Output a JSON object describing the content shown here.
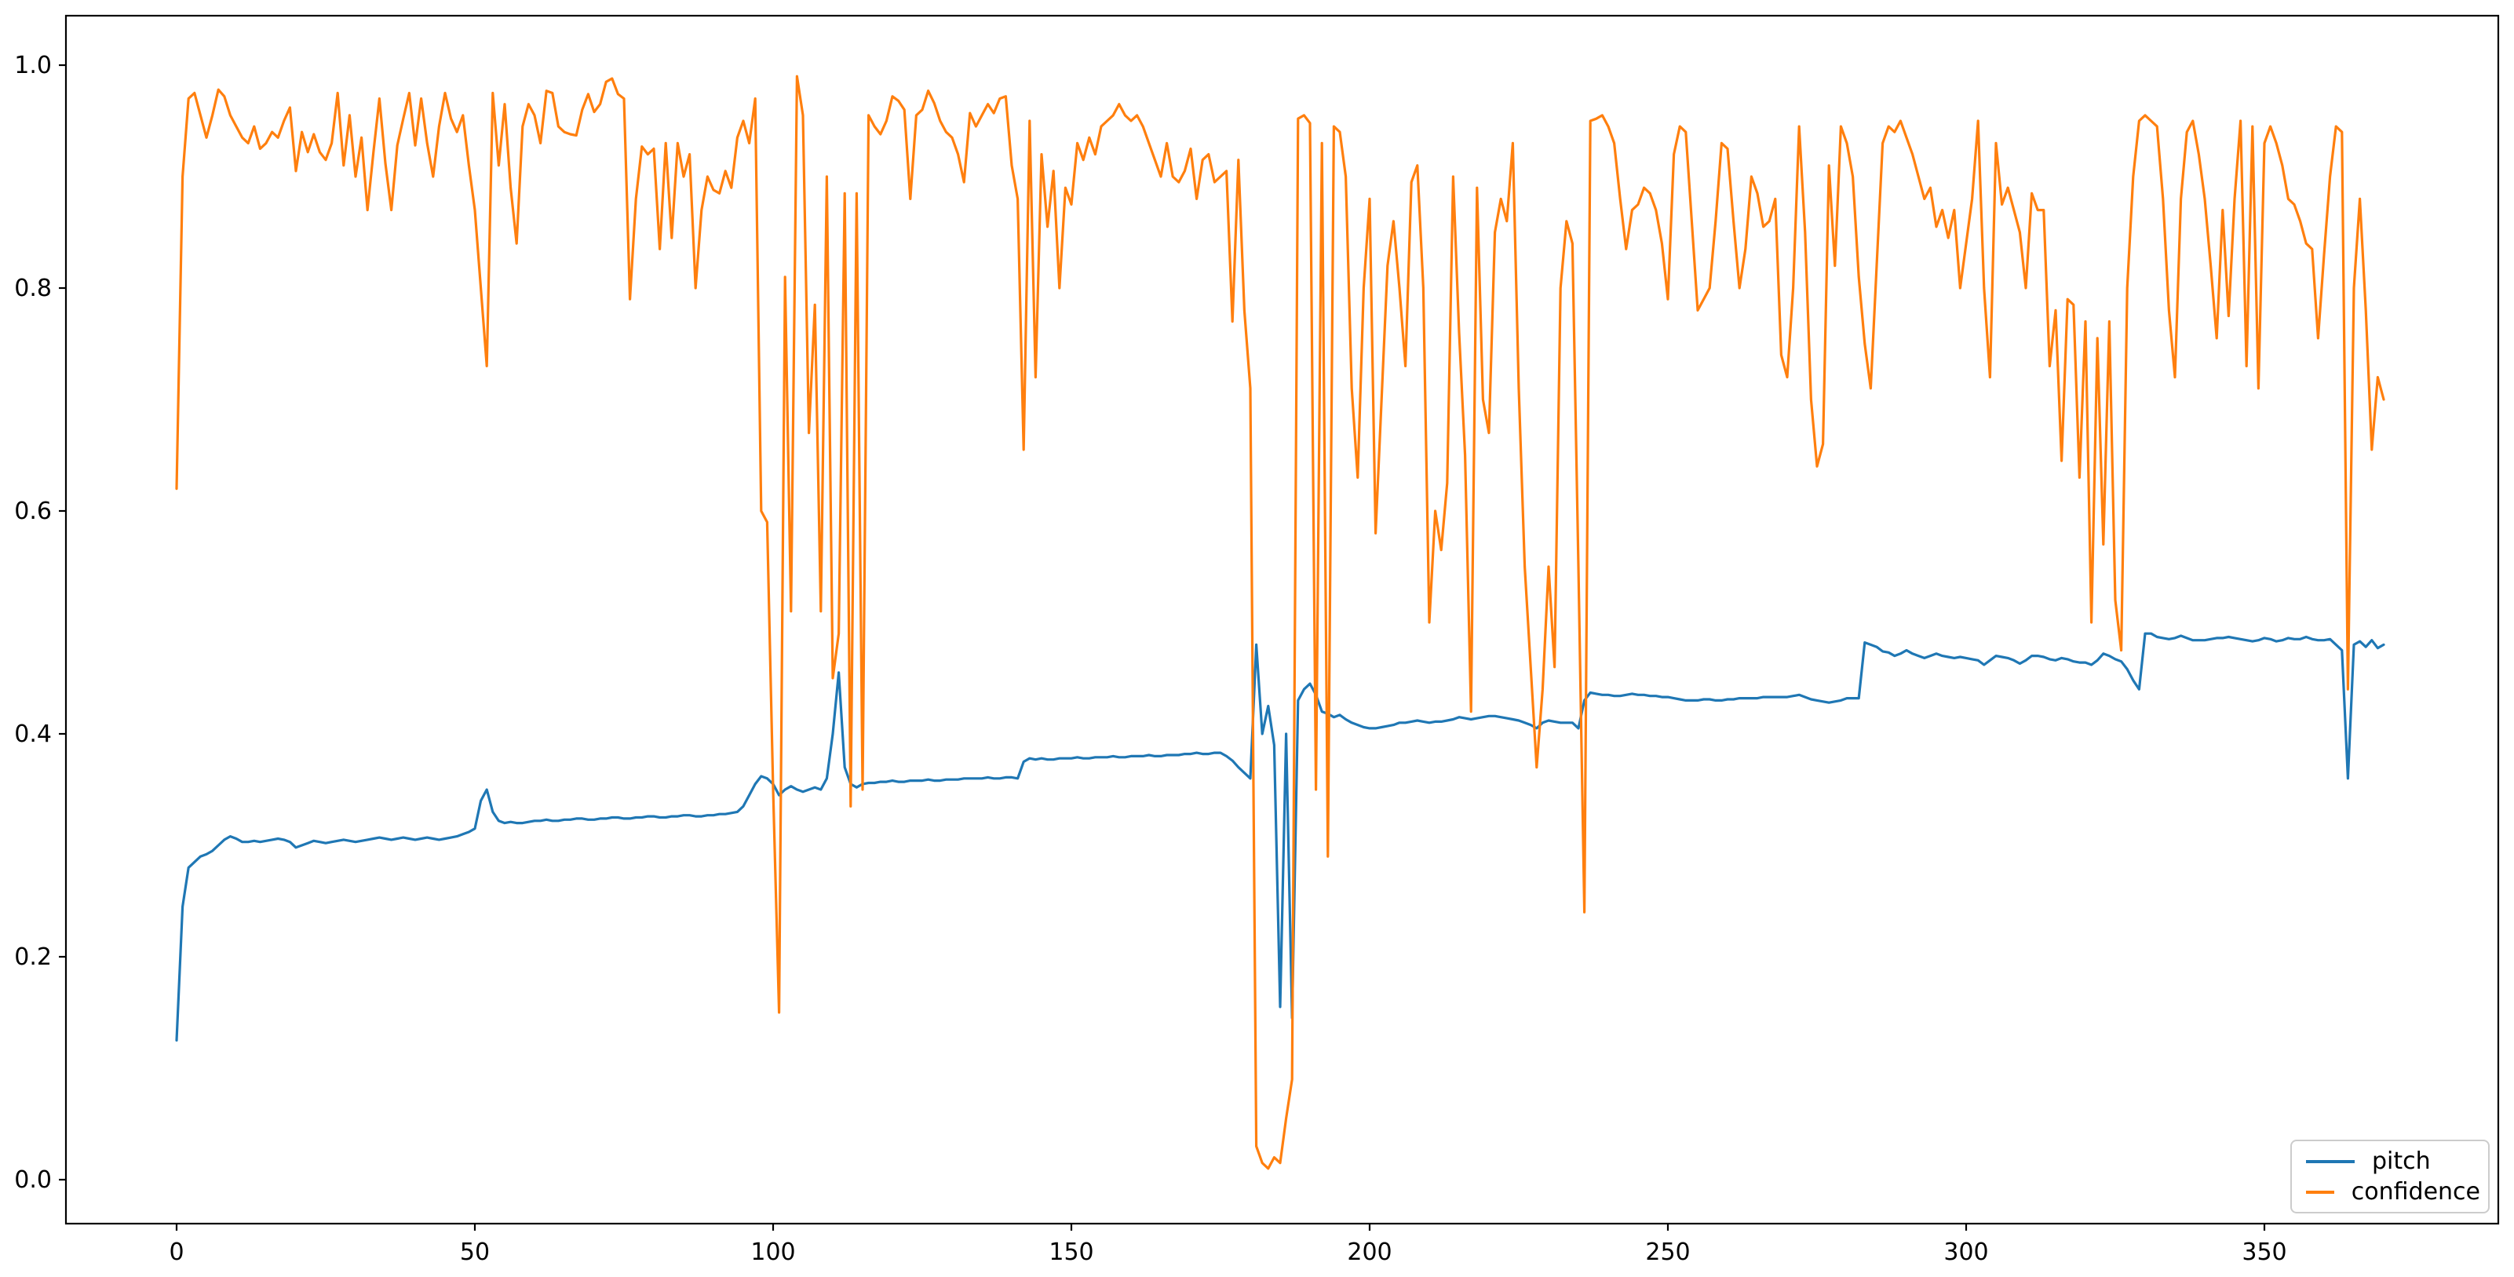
{
  "figure": {
    "background_color": "#ffffff",
    "axes_edge_color": "#000000",
    "tick_label_color": "#000000"
  },
  "legend": {
    "position": "lower-right",
    "items": [
      {
        "label": "pitch",
        "color": "#1f77b4"
      },
      {
        "label": "confidence",
        "color": "#ff7f0e"
      }
    ]
  },
  "chart_data": {
    "type": "line",
    "title": "",
    "xlabel": "",
    "ylabel": "",
    "grid": false,
    "legend_position": "lower right",
    "x_tick_labels": [
      "0",
      "50",
      "100",
      "150",
      "200",
      "250",
      "300",
      "350"
    ],
    "x_tick_values": [
      0,
      50,
      100,
      150,
      200,
      250,
      300,
      350
    ],
    "y_tick_labels": [
      "0.0",
      "0.2",
      "0.4",
      "0.6",
      "0.8",
      "1.0"
    ],
    "y_tick_values": [
      0.0,
      0.2,
      0.4,
      0.6,
      0.8,
      1.0
    ],
    "xlim": [
      -18.5,
      388.5
    ],
    "ylim": [
      -0.039,
      1.044
    ],
    "x_start": 0,
    "x_step": 1,
    "n_points": 371,
    "series": [
      {
        "name": "pitch",
        "color": "#1f77b4",
        "values": [
          0.125,
          0.245,
          0.28,
          0.285,
          0.29,
          0.292,
          0.295,
          0.3,
          0.305,
          0.308,
          0.306,
          0.303,
          0.303,
          0.304,
          0.303,
          0.304,
          0.305,
          0.306,
          0.305,
          0.303,
          0.298,
          0.3,
          0.302,
          0.304,
          0.303,
          0.302,
          0.303,
          0.304,
          0.305,
          0.304,
          0.303,
          0.304,
          0.305,
          0.306,
          0.307,
          0.306,
          0.305,
          0.306,
          0.307,
          0.306,
          0.305,
          0.306,
          0.307,
          0.306,
          0.305,
          0.306,
          0.307,
          0.308,
          0.31,
          0.312,
          0.315,
          0.34,
          0.35,
          0.33,
          0.322,
          0.32,
          0.321,
          0.32,
          0.32,
          0.321,
          0.322,
          0.322,
          0.323,
          0.322,
          0.322,
          0.323,
          0.323,
          0.324,
          0.324,
          0.323,
          0.323,
          0.324,
          0.324,
          0.325,
          0.325,
          0.324,
          0.324,
          0.325,
          0.325,
          0.326,
          0.326,
          0.325,
          0.325,
          0.326,
          0.326,
          0.327,
          0.327,
          0.326,
          0.326,
          0.327,
          0.327,
          0.328,
          0.328,
          0.329,
          0.33,
          0.335,
          0.345,
          0.355,
          0.362,
          0.36,
          0.355,
          0.345,
          0.35,
          0.353,
          0.35,
          0.348,
          0.35,
          0.352,
          0.35,
          0.36,
          0.4,
          0.455,
          0.37,
          0.355,
          0.352,
          0.355,
          0.356,
          0.356,
          0.357,
          0.357,
          0.358,
          0.357,
          0.357,
          0.358,
          0.358,
          0.358,
          0.359,
          0.358,
          0.358,
          0.359,
          0.359,
          0.359,
          0.36,
          0.36,
          0.36,
          0.36,
          0.361,
          0.36,
          0.36,
          0.361,
          0.361,
          0.36,
          0.375,
          0.378,
          0.377,
          0.378,
          0.377,
          0.377,
          0.378,
          0.378,
          0.378,
          0.379,
          0.378,
          0.378,
          0.379,
          0.379,
          0.379,
          0.38,
          0.379,
          0.379,
          0.38,
          0.38,
          0.38,
          0.381,
          0.38,
          0.38,
          0.381,
          0.381,
          0.381,
          0.382,
          0.382,
          0.383,
          0.382,
          0.382,
          0.383,
          0.383,
          0.38,
          0.376,
          0.37,
          0.365,
          0.36,
          0.48,
          0.4,
          0.425,
          0.39,
          0.155,
          0.4,
          0.145,
          0.43,
          0.44,
          0.445,
          0.435,
          0.42,
          0.418,
          0.415,
          0.417,
          0.413,
          0.41,
          0.408,
          0.406,
          0.405,
          0.405,
          0.406,
          0.407,
          0.408,
          0.41,
          0.41,
          0.411,
          0.412,
          0.411,
          0.41,
          0.411,
          0.411,
          0.412,
          0.413,
          0.415,
          0.414,
          0.413,
          0.414,
          0.415,
          0.416,
          0.416,
          0.415,
          0.414,
          0.413,
          0.412,
          0.41,
          0.408,
          0.405,
          0.41,
          0.412,
          0.411,
          0.41,
          0.41,
          0.41,
          0.405,
          0.43,
          0.437,
          0.436,
          0.435,
          0.435,
          0.434,
          0.434,
          0.435,
          0.436,
          0.435,
          0.435,
          0.434,
          0.434,
          0.433,
          0.433,
          0.432,
          0.431,
          0.43,
          0.43,
          0.43,
          0.431,
          0.431,
          0.43,
          0.43,
          0.431,
          0.431,
          0.432,
          0.432,
          0.432,
          0.432,
          0.433,
          0.433,
          0.433,
          0.433,
          0.433,
          0.434,
          0.435,
          0.433,
          0.431,
          0.43,
          0.429,
          0.428,
          0.429,
          0.43,
          0.432,
          0.432,
          0.432,
          0.482,
          0.48,
          0.478,
          0.474,
          0.473,
          0.47,
          0.472,
          0.475,
          0.472,
          0.47,
          0.468,
          0.47,
          0.472,
          0.47,
          0.469,
          0.468,
          0.469,
          0.468,
          0.467,
          0.466,
          0.462,
          0.466,
          0.47,
          0.469,
          0.468,
          0.466,
          0.463,
          0.466,
          0.47,
          0.47,
          0.469,
          0.467,
          0.466,
          0.468,
          0.467,
          0.465,
          0.464,
          0.464,
          0.462,
          0.466,
          0.472,
          0.47,
          0.467,
          0.465,
          0.458,
          0.448,
          0.44,
          0.49,
          0.49,
          0.487,
          0.486,
          0.485,
          0.486,
          0.488,
          0.486,
          0.484,
          0.484,
          0.484,
          0.485,
          0.486,
          0.486,
          0.487,
          0.486,
          0.485,
          0.484,
          0.483,
          0.484,
          0.486,
          0.485,
          0.483,
          0.484,
          0.486,
          0.485,
          0.485,
          0.487,
          0.485,
          0.484,
          0.484,
          0.485,
          0.48,
          0.475,
          0.36,
          0.48,
          0.483,
          0.478,
          0.484,
          0.477,
          0.48
        ]
      },
      {
        "name": "confidence",
        "color": "#ff7f0e",
        "values": [
          0.62,
          0.9,
          0.97,
          0.975,
          0.955,
          0.935,
          0.955,
          0.978,
          0.972,
          0.955,
          0.945,
          0.935,
          0.93,
          0.945,
          0.925,
          0.93,
          0.94,
          0.935,
          0.95,
          0.962,
          0.905,
          0.94,
          0.922,
          0.938,
          0.922,
          0.915,
          0.93,
          0.975,
          0.91,
          0.955,
          0.9,
          0.935,
          0.87,
          0.922,
          0.97,
          0.912,
          0.87,
          0.928,
          0.952,
          0.975,
          0.928,
          0.97,
          0.93,
          0.9,
          0.945,
          0.975,
          0.952,
          0.94,
          0.955,
          0.91,
          0.87,
          0.8,
          0.73,
          0.975,
          0.91,
          0.965,
          0.89,
          0.84,
          0.945,
          0.965,
          0.955,
          0.93,
          0.977,
          0.975,
          0.945,
          0.94,
          0.938,
          0.937,
          0.96,
          0.974,
          0.958,
          0.965,
          0.985,
          0.988,
          0.974,
          0.97,
          0.79,
          0.88,
          0.927,
          0.92,
          0.925,
          0.835,
          0.93,
          0.845,
          0.93,
          0.9,
          0.92,
          0.8,
          0.87,
          0.9,
          0.888,
          0.885,
          0.905,
          0.89,
          0.935,
          0.95,
          0.93,
          0.97,
          0.6,
          0.59,
          0.35,
          0.15,
          0.81,
          0.51,
          0.99,
          0.955,
          0.67,
          0.785,
          0.51,
          0.9,
          0.45,
          0.49,
          0.885,
          0.335,
          0.885,
          0.35,
          0.955,
          0.945,
          0.938,
          0.95,
          0.972,
          0.968,
          0.96,
          0.88,
          0.955,
          0.96,
          0.977,
          0.966,
          0.95,
          0.94,
          0.935,
          0.92,
          0.895,
          0.957,
          0.945,
          0.955,
          0.965,
          0.957,
          0.97,
          0.972,
          0.91,
          0.88,
          0.655,
          0.95,
          0.72,
          0.92,
          0.855,
          0.905,
          0.8,
          0.89,
          0.875,
          0.93,
          0.915,
          0.935,
          0.92,
          0.945,
          0.95,
          0.955,
          0.965,
          0.955,
          0.95,
          0.955,
          0.945,
          0.93,
          0.915,
          0.9,
          0.93,
          0.9,
          0.895,
          0.905,
          0.925,
          0.88,
          0.915,
          0.92,
          0.895,
          0.9,
          0.905,
          0.77,
          0.915,
          0.78,
          0.71,
          0.03,
          0.015,
          0.01,
          0.02,
          0.015,
          0.055,
          0.09,
          0.952,
          0.955,
          0.948,
          0.35,
          0.93,
          0.29,
          0.945,
          0.94,
          0.9,
          0.71,
          0.63,
          0.8,
          0.88,
          0.58,
          0.7,
          0.82,
          0.86,
          0.8,
          0.73,
          0.895,
          0.91,
          0.8,
          0.5,
          0.6,
          0.565,
          0.625,
          0.9,
          0.76,
          0.65,
          0.42,
          0.89,
          0.7,
          0.67,
          0.85,
          0.88,
          0.86,
          0.93,
          0.71,
          0.55,
          0.46,
          0.37,
          0.44,
          0.55,
          0.46,
          0.8,
          0.86,
          0.84,
          0.55,
          0.24,
          0.95,
          0.952,
          0.955,
          0.945,
          0.93,
          0.88,
          0.835,
          0.87,
          0.875,
          0.89,
          0.885,
          0.87,
          0.84,
          0.79,
          0.92,
          0.945,
          0.94,
          0.86,
          0.78,
          0.79,
          0.8,
          0.86,
          0.93,
          0.925,
          0.86,
          0.8,
          0.835,
          0.9,
          0.885,
          0.855,
          0.86,
          0.88,
          0.74,
          0.72,
          0.8,
          0.945,
          0.85,
          0.7,
          0.64,
          0.66,
          0.91,
          0.82,
          0.945,
          0.93,
          0.9,
          0.81,
          0.75,
          0.71,
          0.82,
          0.93,
          0.945,
          0.94,
          0.95,
          0.935,
          0.92,
          0.9,
          0.88,
          0.89,
          0.855,
          0.87,
          0.845,
          0.87,
          0.8,
          0.84,
          0.88,
          0.95,
          0.8,
          0.72,
          0.93,
          0.875,
          0.89,
          0.87,
          0.85,
          0.8,
          0.885,
          0.87,
          0.87,
          0.73,
          0.78,
          0.645,
          0.79,
          0.785,
          0.63,
          0.77,
          0.5,
          0.755,
          0.57,
          0.77,
          0.52,
          0.475,
          0.8,
          0.9,
          0.95,
          0.955,
          0.95,
          0.945,
          0.88,
          0.78,
          0.72,
          0.88,
          0.94,
          0.95,
          0.92,
          0.88,
          0.82,
          0.755,
          0.87,
          0.775,
          0.88,
          0.95,
          0.73,
          0.945,
          0.71,
          0.93,
          0.945,
          0.93,
          0.91,
          0.88,
          0.875,
          0.86,
          0.84,
          0.835,
          0.755,
          0.83,
          0.9,
          0.945,
          0.94,
          0.44,
          0.8,
          0.88,
          0.78,
          0.655,
          0.72,
          0.7
        ]
      }
    ]
  }
}
